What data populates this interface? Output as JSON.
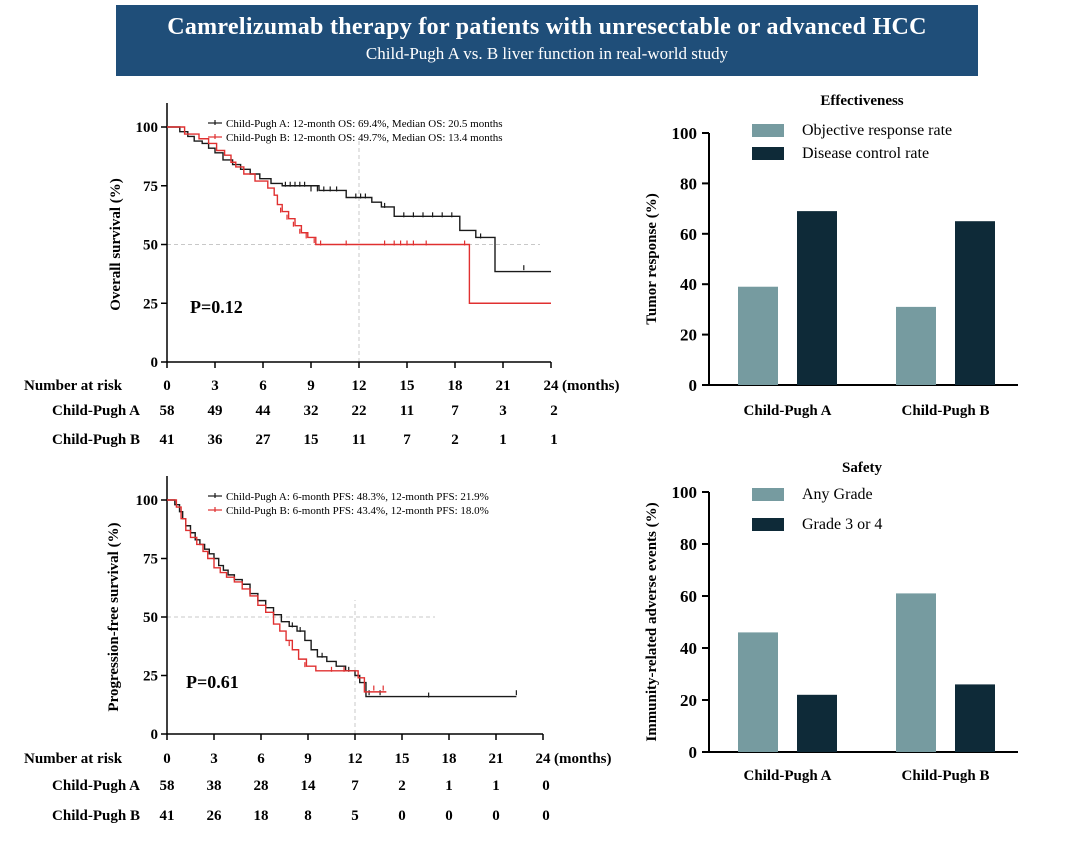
{
  "header": {
    "title": "Camrelizumab therapy for patients with unresectable or advanced HCC",
    "subtitle": "Child-Pugh A vs. B liver function in real-world study"
  },
  "colors": {
    "banner": "#1f4e79",
    "cp_a_line": "#1a1a1a",
    "cp_b_line": "#e03030",
    "bar_light": "#769ba0",
    "bar_dark": "#0e2a38"
  },
  "chart_data": [
    {
      "type": "line",
      "id": "os",
      "ylabel": "Overall survival (%)",
      "yticks": [
        "0",
        "25",
        "50",
        "75",
        "100"
      ],
      "ylim": [
        0,
        100
      ],
      "xlim": [
        0,
        24
      ],
      "xticks": [
        "0",
        "3",
        "6",
        "9",
        "12",
        "15",
        "18",
        "21",
        "24"
      ],
      "x_unit": "(months)",
      "p_value": "P=0.12",
      "legend": [
        "Child-Pugh  A:  12-month OS: 69.4%, Median OS: 20.5 months",
        "Child-Pugh  B:  12-month OS: 49.7%, Median OS: 13.4 months"
      ],
      "risk_title": "Number at risk",
      "risk_rows": [
        {
          "label": "Child-Pugh A",
          "values": [
            "58",
            "49",
            "44",
            "32",
            "22",
            "11",
            "7",
            "3",
            "2"
          ]
        },
        {
          "label": "Child-Pugh B",
          "values": [
            "41",
            "36",
            "27",
            "15",
            "11",
            "7",
            "2",
            "1",
            "1"
          ]
        }
      ],
      "series": [
        {
          "name": "Child-Pugh A",
          "steps": [
            [
              0,
              100
            ],
            [
              0.8,
              98
            ],
            [
              1.3,
              96
            ],
            [
              1.7,
              94
            ],
            [
              2.2,
              93
            ],
            [
              2.6,
              91
            ],
            [
              3,
              89
            ],
            [
              3.5,
              86
            ],
            [
              4.1,
              84
            ],
            [
              4.6,
              82
            ],
            [
              5.2,
              80
            ],
            [
              5.8,
              78
            ],
            [
              6.5,
              76
            ],
            [
              7.2,
              75
            ],
            [
              9.5,
              73
            ],
            [
              11.2,
              70
            ],
            [
              12.8,
              68
            ],
            [
              13.4,
              66
            ],
            [
              14.2,
              62
            ],
            [
              18.3,
              56
            ],
            [
              19.3,
              53
            ],
            [
              20.5,
              38.5
            ],
            [
              24,
              38.5
            ]
          ],
          "censors": [
            [
              7.4,
              75
            ],
            [
              7.7,
              75
            ],
            [
              8.0,
              75
            ],
            [
              8.3,
              75
            ],
            [
              8.6,
              75
            ],
            [
              9.0,
              73
            ],
            [
              9.4,
              73
            ],
            [
              9.8,
              73
            ],
            [
              10.2,
              73
            ],
            [
              10.6,
              73
            ],
            [
              11.8,
              70
            ],
            [
              12.1,
              70
            ],
            [
              12.4,
              70
            ],
            [
              13.6,
              66
            ],
            [
              14.8,
              62
            ],
            [
              15.4,
              62
            ],
            [
              16.0,
              62
            ],
            [
              16.6,
              62
            ],
            [
              17.2,
              62
            ],
            [
              17.8,
              62
            ],
            [
              19.6,
              53
            ],
            [
              22.3,
              39.5
            ]
          ]
        },
        {
          "name": "Child-Pugh B",
          "steps": [
            [
              0,
              100
            ],
            [
              1.1,
              97
            ],
            [
              2,
              95
            ],
            [
              2.6,
              93
            ],
            [
              3.1,
              90
            ],
            [
              3.6,
              88
            ],
            [
              4.0,
              85
            ],
            [
              4.3,
              83
            ],
            [
              4.8,
              80
            ],
            [
              5.5,
              77
            ],
            [
              6.3,
              74
            ],
            [
              6.7,
              71
            ],
            [
              6.9,
              67
            ],
            [
              7.2,
              64
            ],
            [
              7.6,
              61
            ],
            [
              8.0,
              58
            ],
            [
              8.4,
              55
            ],
            [
              8.8,
              53
            ],
            [
              9.3,
              50
            ],
            [
              18.9,
              50
            ],
            [
              18.9,
              25
            ],
            [
              24,
              25
            ]
          ],
          "censors": [
            [
              7.1,
              64
            ],
            [
              7.5,
              61
            ],
            [
              7.9,
              58
            ],
            [
              8.3,
              55
            ],
            [
              8.7,
              53
            ],
            [
              9.2,
              51
            ],
            [
              9.6,
              50
            ],
            [
              11.2,
              50
            ],
            [
              13.6,
              50
            ],
            [
              14.2,
              50
            ],
            [
              14.6,
              50
            ],
            [
              15.0,
              50
            ],
            [
              15.4,
              50
            ],
            [
              16.2,
              50
            ],
            [
              18.6,
              50
            ]
          ]
        }
      ]
    },
    {
      "type": "line",
      "id": "pfs",
      "ylabel": "Progression-free survival (%)",
      "yticks": [
        "0",
        "25",
        "50",
        "75",
        "100"
      ],
      "ylim": [
        0,
        100
      ],
      "xlim": [
        0,
        24
      ],
      "xticks": [
        "0",
        "3",
        "6",
        "9",
        "12",
        "15",
        "18",
        "21",
        "24"
      ],
      "x_unit": "(months)",
      "p_value": "P=0.61",
      "legend": [
        "Child-Pugh  A:  6-month PFS: 48.3%, 12-month PFS: 21.9%",
        "Child-Pugh  B:  6-month PFS: 43.4%, 12-month PFS: 18.0%"
      ],
      "risk_title": "Number at risk",
      "risk_rows": [
        {
          "label": "Child-Pugh A",
          "values": [
            "58",
            "38",
            "28",
            "14",
            "7",
            "2",
            "1",
            "1",
            "0"
          ]
        },
        {
          "label": "Child-Pugh B",
          "values": [
            "41",
            "26",
            "18",
            "8",
            "5",
            "0",
            "0",
            "0",
            "0"
          ]
        }
      ],
      "series": [
        {
          "name": "Child-Pugh A",
          "steps": [
            [
              0,
              100
            ],
            [
              0.5,
              98
            ],
            [
              0.8,
              95
            ],
            [
              1.0,
              92
            ],
            [
              1.2,
              89
            ],
            [
              1.5,
              86
            ],
            [
              1.8,
              83
            ],
            [
              2.1,
              81
            ],
            [
              2.4,
              79
            ],
            [
              2.7,
              77
            ],
            [
              3.0,
              75
            ],
            [
              3.3,
              72
            ],
            [
              3.6,
              70
            ],
            [
              3.9,
              68
            ],
            [
              4.3,
              66
            ],
            [
              4.8,
              64
            ],
            [
              5.3,
              60
            ],
            [
              5.8,
              57
            ],
            [
              6.3,
              54
            ],
            [
              6.8,
              51
            ],
            [
              7.3,
              48
            ],
            [
              7.8,
              46
            ],
            [
              8.3,
              44
            ],
            [
              8.8,
              40
            ],
            [
              9.2,
              36
            ],
            [
              9.6,
              33
            ],
            [
              10.2,
              31
            ],
            [
              10.8,
              29
            ],
            [
              11.4,
              27
            ],
            [
              12.0,
              25
            ],
            [
              12.3,
              22
            ],
            [
              12.7,
              16
            ],
            [
              22.3,
              16
            ],
            [
              22.3,
              16
            ]
          ],
          "censors": [
            [
              8.0,
              46
            ],
            [
              8.5,
              44
            ],
            [
              9.9,
              33
            ],
            [
              11.6,
              27
            ],
            [
              12.9,
              17
            ],
            [
              13.6,
              17
            ],
            [
              16.7,
              16
            ],
            [
              22.3,
              17
            ]
          ]
        },
        {
          "name": "Child-Pugh B",
          "steps": [
            [
              0,
              100
            ],
            [
              0.6,
              97
            ],
            [
              0.9,
              92
            ],
            [
              1.2,
              87
            ],
            [
              1.5,
              84
            ],
            [
              1.9,
              81
            ],
            [
              2.3,
              78
            ],
            [
              2.6,
              75
            ],
            [
              3.0,
              71
            ],
            [
              3.4,
              69
            ],
            [
              3.8,
              67
            ],
            [
              4.3,
              65
            ],
            [
              4.8,
              62
            ],
            [
              5.3,
              59
            ],
            [
              5.8,
              55
            ],
            [
              6.3,
              52
            ],
            [
              6.8,
              47
            ],
            [
              7.2,
              44
            ],
            [
              7.6,
              40
            ],
            [
              8.0,
              36
            ],
            [
              8.4,
              32
            ],
            [
              8.9,
              29
            ],
            [
              9.5,
              27
            ],
            [
              11.5,
              27
            ],
            [
              12.2,
              24
            ],
            [
              12.6,
              18
            ],
            [
              14.0,
              18
            ]
          ],
          "censors": [
            [
              7.8,
              38
            ],
            [
              8.8,
              29
            ],
            [
              10.5,
              27
            ],
            [
              11.3,
              27
            ],
            [
              13.2,
              19
            ],
            [
              13.8,
              19
            ]
          ]
        }
      ]
    },
    {
      "type": "bar",
      "id": "effectiveness",
      "title": "Effectiveness",
      "ylabel": "Tumor response (%)",
      "ylim": [
        0,
        100
      ],
      "yticks": [
        "0",
        "20",
        "40",
        "60",
        "80",
        "100"
      ],
      "categories": [
        "Child-Pugh A",
        "Child-Pugh B"
      ],
      "series": [
        {
          "name": "Objective response rate",
          "values": [
            39,
            31
          ]
        },
        {
          "name": "Disease control rate",
          "values": [
            69,
            65
          ]
        }
      ]
    },
    {
      "type": "bar",
      "id": "safety",
      "title": "Safety",
      "ylabel": "Immunity-related adverse events (%)",
      "ylim": [
        0,
        100
      ],
      "yticks": [
        "0",
        "20",
        "40",
        "60",
        "80",
        "100"
      ],
      "categories": [
        "Child-Pugh A",
        "Child-Pugh B"
      ],
      "series": [
        {
          "name": "Any Grade",
          "values": [
            46,
            61
          ]
        },
        {
          "name": "Grade 3 or 4",
          "values": [
            22,
            26
          ]
        }
      ]
    }
  ]
}
